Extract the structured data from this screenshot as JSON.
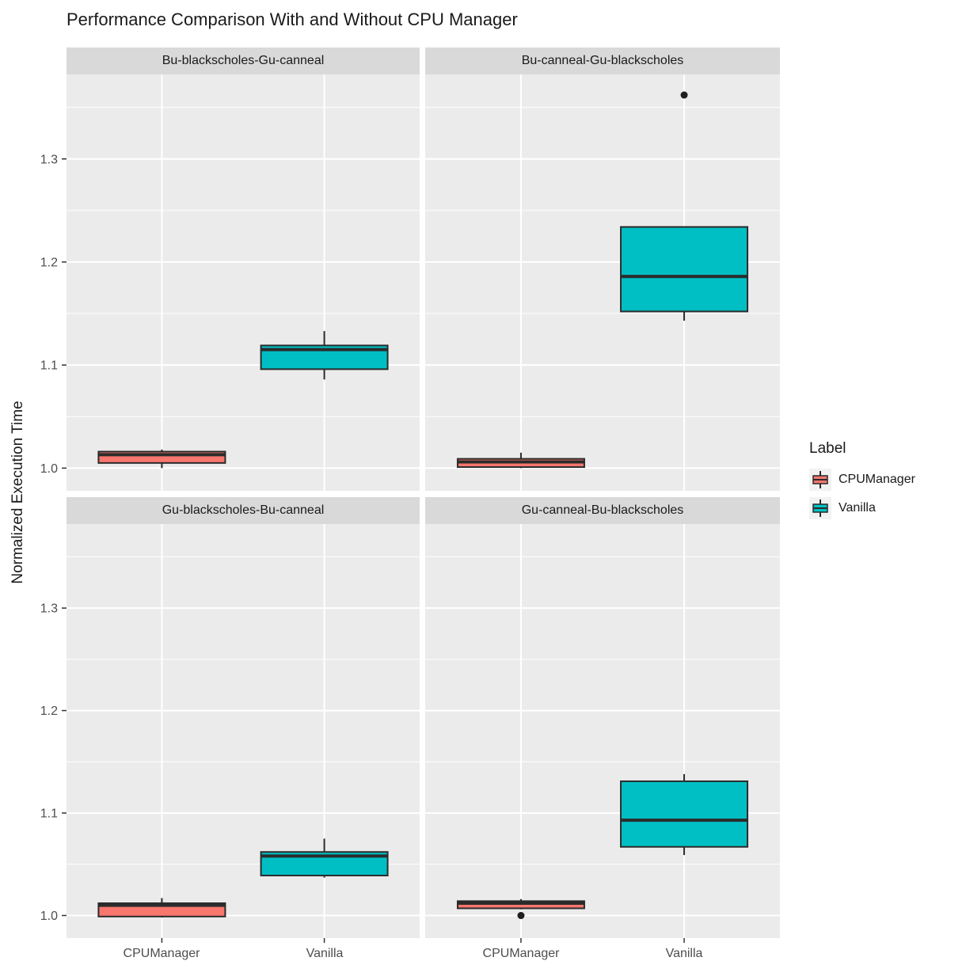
{
  "title": "Performance Comparison With and Without CPU Manager",
  "y_axis": {
    "label": "Normalized Execution Time",
    "ticks": [
      1.0,
      1.1,
      1.2,
      1.3
    ],
    "minor_ticks": [
      1.05,
      1.15,
      1.25,
      1.35
    ]
  },
  "x_axis": {
    "categories": [
      "CPUManager",
      "Vanilla"
    ]
  },
  "legend": {
    "title": "Label",
    "entries": [
      {
        "label": "CPUManager",
        "color": "#F8766D"
      },
      {
        "label": "Vanilla",
        "color": "#00BFC4"
      }
    ]
  },
  "colors": {
    "panel_background": "#EBEBEB",
    "strip_background": "#D9D9D9",
    "gridline": "#FFFFFF",
    "box_outline": "#2b2b2b",
    "axis_text": "#4d4d4d"
  },
  "chart_data": {
    "type": "boxplot",
    "facet_layout": "2x2",
    "ylim": [
      0.978,
      1.382
    ],
    "categories": [
      "CPUManager",
      "Vanilla"
    ],
    "facets": [
      {
        "name": "Bu-blackscholes-Gu-canneal",
        "boxes": [
          {
            "label": "CPUManager",
            "min": 1.0,
            "q1": 1.005,
            "median": 1.013,
            "q3": 1.016,
            "max": 1.018,
            "outliers": []
          },
          {
            "label": "Vanilla",
            "min": 1.086,
            "q1": 1.096,
            "median": 1.115,
            "q3": 1.119,
            "max": 1.133,
            "outliers": []
          }
        ]
      },
      {
        "name": "Bu-canneal-Gu-blackscholes",
        "boxes": [
          {
            "label": "CPUManager",
            "min": 1.0,
            "q1": 1.001,
            "median": 1.006,
            "q3": 1.009,
            "max": 1.015,
            "outliers": []
          },
          {
            "label": "Vanilla",
            "min": 1.143,
            "q1": 1.152,
            "median": 1.186,
            "q3": 1.234,
            "max": 1.234,
            "outliers": [
              1.362
            ]
          }
        ]
      },
      {
        "name": "Gu-blackscholes-Bu-canneal",
        "boxes": [
          {
            "label": "CPUManager",
            "min": 0.998,
            "q1": 0.999,
            "median": 1.01,
            "q3": 1.012,
            "max": 1.017,
            "outliers": []
          },
          {
            "label": "Vanilla",
            "min": 1.037,
            "q1": 1.039,
            "median": 1.058,
            "q3": 1.062,
            "max": 1.075,
            "outliers": []
          }
        ]
      },
      {
        "name": "Gu-canneal-Bu-blackscholes",
        "boxes": [
          {
            "label": "CPUManager",
            "min": 1.006,
            "q1": 1.007,
            "median": 1.012,
            "q3": 1.014,
            "max": 1.016,
            "outliers": [
              1.0
            ]
          },
          {
            "label": "Vanilla",
            "min": 1.059,
            "q1": 1.067,
            "median": 1.093,
            "q3": 1.131,
            "max": 1.138,
            "outliers": []
          }
        ]
      }
    ]
  }
}
